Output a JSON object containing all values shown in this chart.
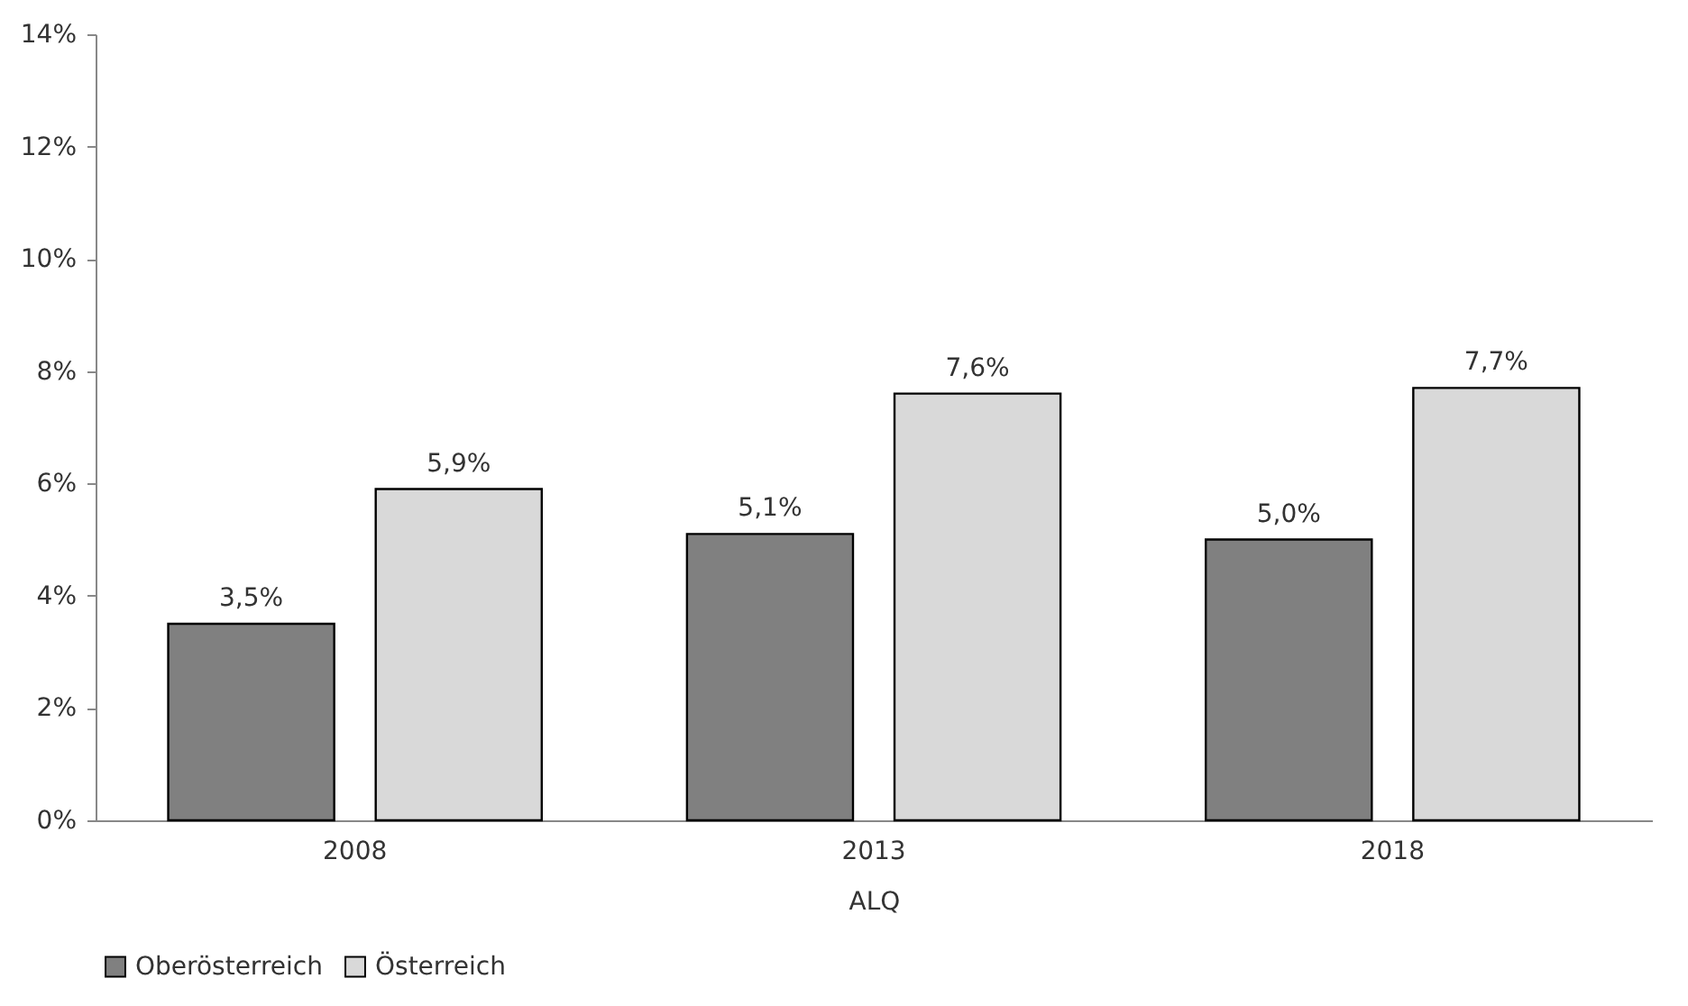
{
  "chart_data": {
    "type": "bar",
    "xlabel": "ALQ",
    "categories": [
      "2008",
      "2013",
      "2018"
    ],
    "series": [
      {
        "name": "Oberösterreich",
        "color": "#808080",
        "values": [
          3.5,
          5.1,
          5.0
        ],
        "value_labels": [
          "3,5%",
          "5,1%",
          "5,0%"
        ]
      },
      {
        "name": "Österreich",
        "color": "#d9d9d9",
        "values": [
          5.9,
          7.6,
          7.7
        ],
        "value_labels": [
          "5,9%",
          "7,6%",
          "7,7%"
        ]
      }
    ],
    "ylim": [
      0,
      14
    ],
    "yticks": [
      {
        "value": 0,
        "label": "0%"
      },
      {
        "value": 2,
        "label": "2%"
      },
      {
        "value": 4,
        "label": "4%"
      },
      {
        "value": 6,
        "label": "6%"
      },
      {
        "value": 8,
        "label": "8%"
      },
      {
        "value": 10,
        "label": "10%"
      },
      {
        "value": 12,
        "label": "12%"
      },
      {
        "value": 14,
        "label": "14%"
      }
    ],
    "grid": false,
    "legend": "bottom"
  }
}
